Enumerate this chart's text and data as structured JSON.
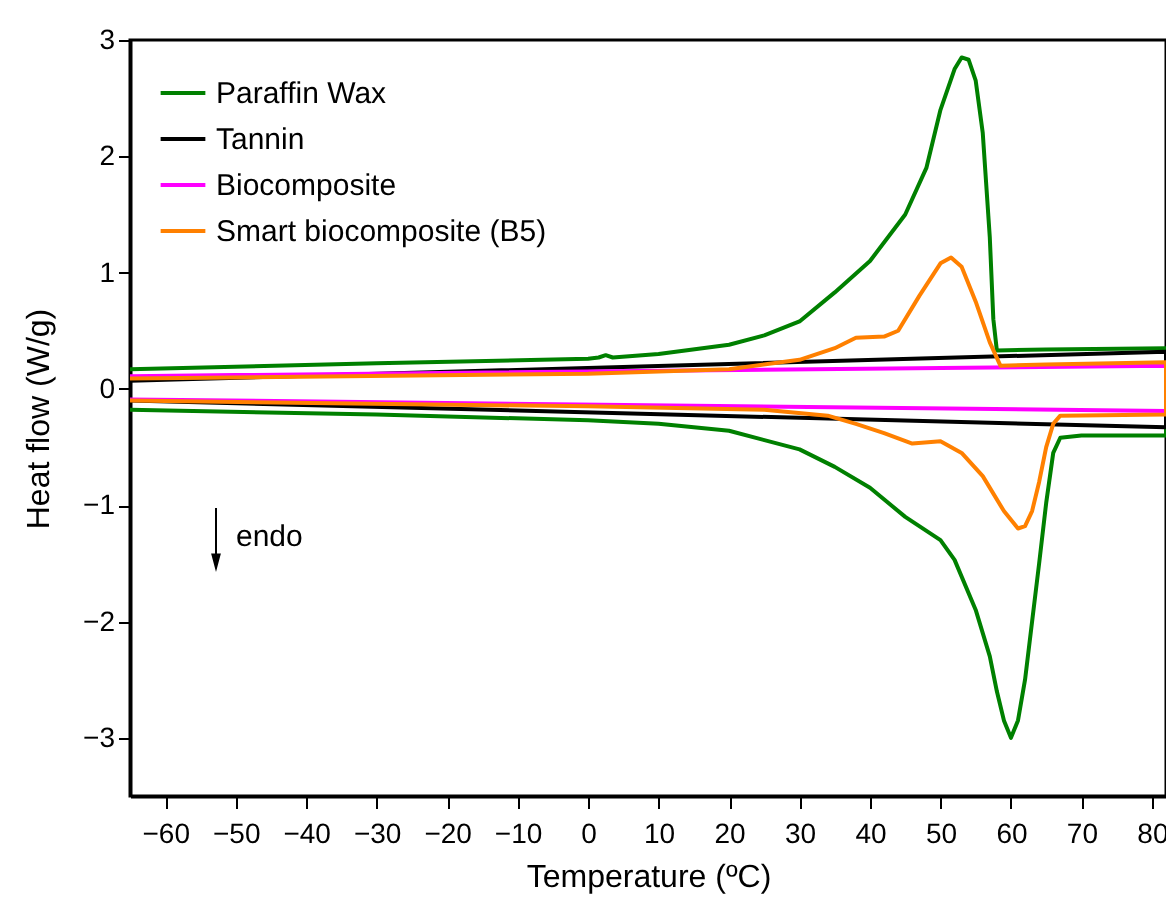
{
  "chart_data": {
    "type": "line",
    "xlabel": "Temperature (ºC)",
    "ylabel": "Heat flow (W/g)",
    "xlim": [
      -65,
      82
    ],
    "ylim": [
      -3.5,
      3
    ],
    "xticks": [
      -60,
      -50,
      -40,
      -30,
      -20,
      -10,
      0,
      10,
      20,
      30,
      40,
      50,
      60,
      70,
      80
    ],
    "yticks": [
      -3,
      -2,
      -1,
      0,
      1,
      2,
      3
    ],
    "legend": "top left",
    "annotations": [
      "endo"
    ],
    "series": [
      {
        "name": "Paraffin Wax",
        "color": "#008000",
        "x": [
          -65,
          -30,
          0,
          1.5,
          2.5,
          3.5,
          10,
          20,
          25,
          30,
          35,
          40,
          45,
          48,
          50,
          52,
          53,
          54,
          55,
          56,
          57,
          57.5,
          58,
          65,
          82,
          82,
          70,
          67,
          66,
          65,
          64,
          63,
          62,
          61,
          60,
          59,
          58,
          57,
          55,
          52,
          50,
          45,
          40,
          35,
          30,
          20,
          10,
          0,
          -30,
          -65
        ],
        "values": [
          0.17,
          0.22,
          0.26,
          0.27,
          0.29,
          0.27,
          0.3,
          0.38,
          0.46,
          0.58,
          0.83,
          1.1,
          1.5,
          1.9,
          2.4,
          2.75,
          2.85,
          2.83,
          2.65,
          2.2,
          1.3,
          0.6,
          0.33,
          0.34,
          0.35,
          -0.4,
          -0.4,
          -0.42,
          -0.55,
          -0.98,
          -1.5,
          -2.0,
          -2.5,
          -2.85,
          -3.0,
          -2.85,
          -2.6,
          -2.3,
          -1.9,
          -1.47,
          -1.3,
          -1.1,
          -0.85,
          -0.67,
          -0.52,
          -0.36,
          -0.3,
          -0.27,
          -0.22,
          -0.18
        ]
      },
      {
        "name": "Tannin",
        "color": "#000000",
        "x": [
          -65,
          82,
          82,
          -65
        ],
        "values": [
          0.07,
          0.32,
          -0.33,
          -0.1
        ]
      },
      {
        "name": "Biocomposite",
        "color": "#ff00ff",
        "x": [
          -65,
          82,
          82,
          -65
        ],
        "values": [
          0.11,
          0.2,
          -0.19,
          -0.09
        ]
      },
      {
        "name": "Smart biocomposite (B5)",
        "color": "#ff8000",
        "x": [
          -65,
          0,
          20,
          30,
          35,
          38,
          42,
          44,
          47,
          50,
          51.5,
          53,
          55,
          57,
          58.5,
          65,
          82,
          82,
          67,
          66,
          65,
          64,
          63,
          62,
          61,
          59,
          56,
          53,
          50,
          46,
          42,
          38,
          34,
          25,
          0,
          -65
        ],
        "values": [
          0.09,
          0.13,
          0.17,
          0.25,
          0.35,
          0.44,
          0.45,
          0.5,
          0.8,
          1.08,
          1.13,
          1.05,
          0.75,
          0.4,
          0.2,
          0.21,
          0.23,
          -0.22,
          -0.23,
          -0.3,
          -0.5,
          -0.8,
          -1.05,
          -1.18,
          -1.2,
          -1.05,
          -0.75,
          -0.55,
          -0.45,
          -0.47,
          -0.38,
          -0.3,
          -0.23,
          -0.18,
          -0.15,
          -0.1
        ]
      }
    ]
  }
}
